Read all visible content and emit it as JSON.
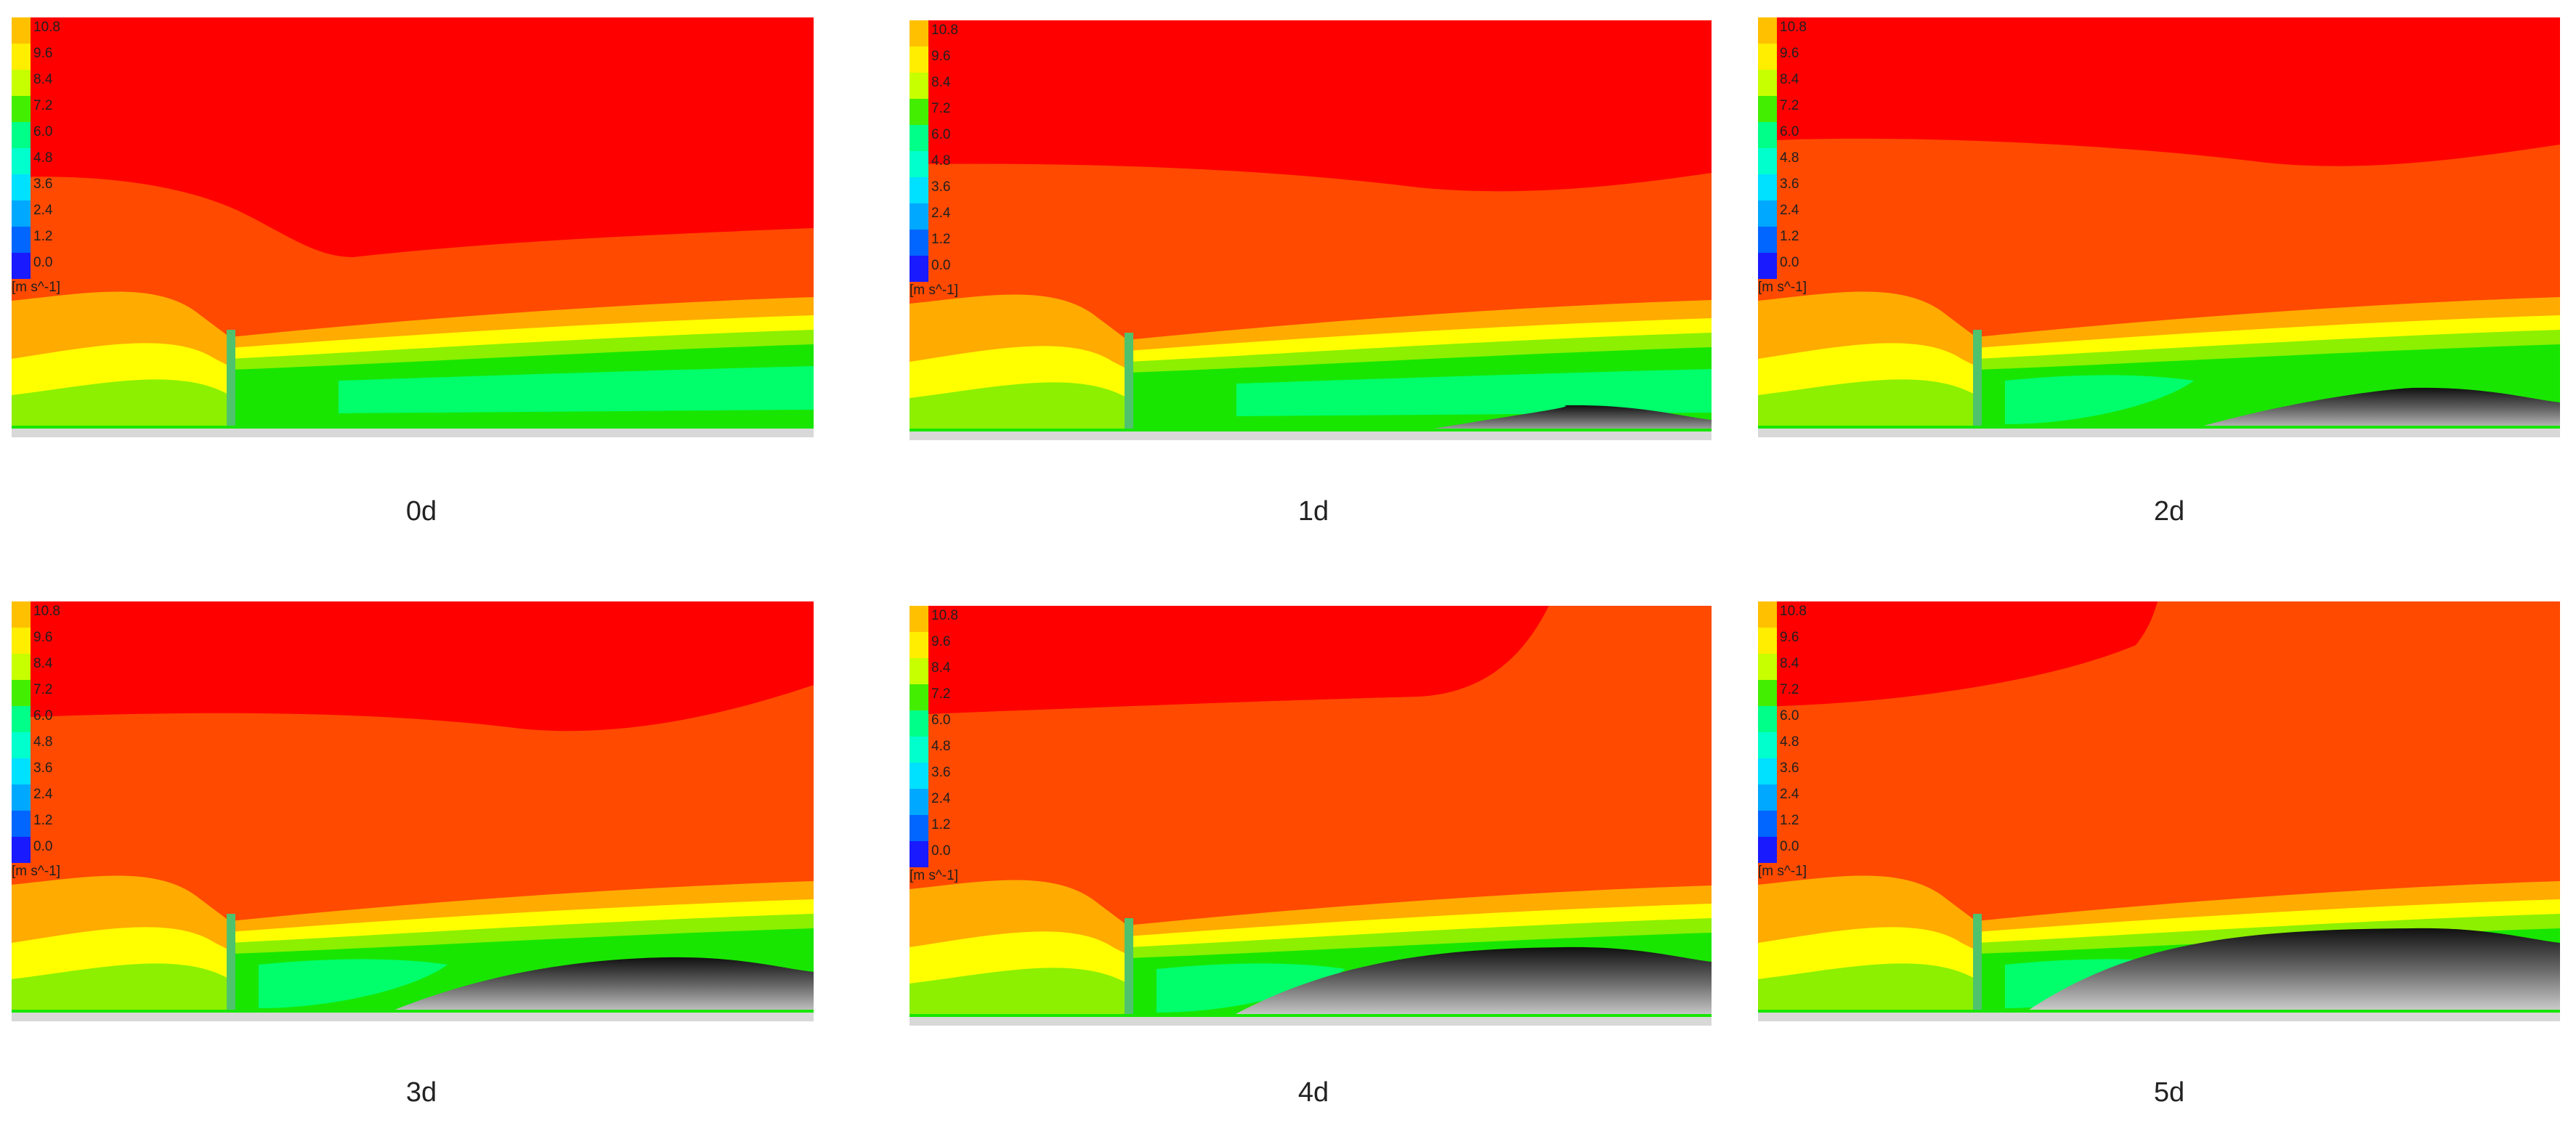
{
  "legend": {
    "ticks": [
      "10.8",
      "9.6",
      "8.4",
      "7.2",
      "6.0",
      "4.8",
      "3.6",
      "2.4",
      "1.2",
      "0.0"
    ],
    "unit": "[m s^-1]",
    "band_colors": [
      "#ffc000",
      "#ffee00",
      "#c8ff00",
      "#44ee00",
      "#00ff88",
      "#00ffcc",
      "#00e0ff",
      "#00a8ff",
      "#0066ff",
      "#1a1aff"
    ]
  },
  "field_colors": {
    "max": "#ff0000",
    "high": "#ff4a00",
    "mid_high": "#ffab00",
    "mid": "#ffff00",
    "mid_low": "#8cf000",
    "low": "#18e600",
    "lower": "#00ff6a",
    "wall": "#4fc26e",
    "surface_light": "#e6e6e6",
    "surface_dark": "#101010"
  },
  "panels": [
    {
      "caption": "0d",
      "surface": 0.0
    },
    {
      "caption": "1d",
      "surface": 0.2
    },
    {
      "caption": "2d",
      "surface": 0.4
    },
    {
      "caption": "3d",
      "surface": 0.6
    },
    {
      "caption": "4d",
      "surface": 0.8
    },
    {
      "caption": "5d",
      "surface": 1.0
    }
  ]
}
